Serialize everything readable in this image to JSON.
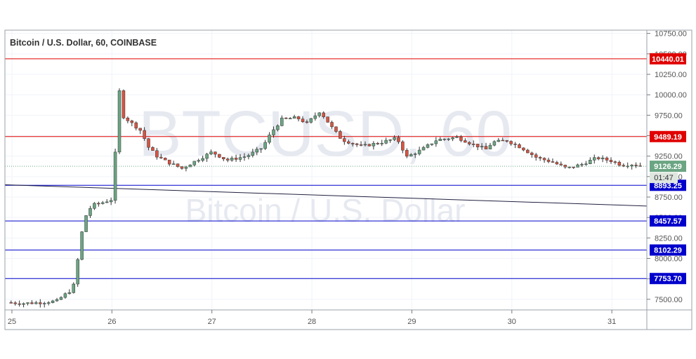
{
  "chart_data": {
    "type": "candlestick",
    "title": "Bitcoin / U.S. Dollar, 60, COINBASE",
    "watermark": {
      "symbol": "BTCUSD, 60",
      "description": "Bitcoin / U.S. Dollar"
    },
    "x_ticks": [
      "25",
      "26",
      "27",
      "28",
      "29",
      "30",
      "31"
    ],
    "y_ticks": [
      "7500.00",
      "7750.00",
      "8000.00",
      "8250.00",
      "8500.00",
      "8750.00",
      "9000.00",
      "9250.00",
      "9500.00",
      "9750.00",
      "10000.00",
      "10250.00",
      "10500.00",
      "10750.00"
    ],
    "ylim": [
      7370,
      10790
    ],
    "xlim": [
      24.93,
      31.35
    ],
    "current_price": {
      "label": "9126.29",
      "value": 9126.29,
      "countdown": "01:47",
      "color": "#6ba583"
    },
    "horizontal_levels": [
      {
        "label": "10440.01",
        "value": 10440.01,
        "color": "#e00000"
      },
      {
        "label": "9489.19",
        "value": 9489.19,
        "color": "#e00000"
      },
      {
        "label": "8893.25",
        "value": 8893.25,
        "color": "#0000cc"
      },
      {
        "label": "8457.57",
        "value": 8457.57,
        "color": "#0000cc"
      },
      {
        "label": "8102.29",
        "value": 8102.29,
        "color": "#0000cc"
      },
      {
        "label": "7753.70",
        "value": 7753.7,
        "color": "#0000cc"
      }
    ],
    "trendline": {
      "start": {
        "x": 24.93,
        "y": 8900
      },
      "end": {
        "x": 31.35,
        "y": 8640
      },
      "color": "#202040"
    },
    "colors": {
      "up": "#6ba583",
      "down": "#d75442",
      "grid": "#f0f3fa",
      "axis": "#777777"
    },
    "path_points": [
      [
        24.95,
        7460
      ],
      [
        25.1,
        7450
      ],
      [
        25.3,
        7460
      ],
      [
        25.45,
        7480
      ],
      [
        25.5,
        7530
      ],
      [
        25.58,
        7600
      ],
      [
        25.63,
        7700
      ],
      [
        25.68,
        8200
      ],
      [
        25.73,
        8500
      ],
      [
        25.8,
        8650
      ],
      [
        25.9,
        8680
      ],
      [
        26.0,
        8720
      ],
      [
        26.03,
        9200
      ],
      [
        26.05,
        9700
      ],
      [
        26.07,
        10100
      ],
      [
        26.1,
        9750
      ],
      [
        26.2,
        9650
      ],
      [
        26.3,
        9550
      ],
      [
        26.35,
        9380
      ],
      [
        26.45,
        9250
      ],
      [
        26.55,
        9180
      ],
      [
        26.7,
        9100
      ],
      [
        26.85,
        9200
      ],
      [
        27.0,
        9300
      ],
      [
        27.15,
        9200
      ],
      [
        27.35,
        9250
      ],
      [
        27.5,
        9350
      ],
      [
        27.6,
        9550
      ],
      [
        27.7,
        9700
      ],
      [
        27.85,
        9720
      ],
      [
        27.95,
        9650
      ],
      [
        28.08,
        9800
      ],
      [
        28.2,
        9600
      ],
      [
        28.3,
        9450
      ],
      [
        28.5,
        9370
      ],
      [
        28.7,
        9420
      ],
      [
        28.85,
        9470
      ],
      [
        28.95,
        9240
      ],
      [
        29.1,
        9330
      ],
      [
        29.25,
        9450
      ],
      [
        29.45,
        9480
      ],
      [
        29.6,
        9400
      ],
      [
        29.75,
        9330
      ],
      [
        29.8,
        9420
      ],
      [
        29.95,
        9440
      ],
      [
        30.1,
        9350
      ],
      [
        30.25,
        9230
      ],
      [
        30.4,
        9180
      ],
      [
        30.55,
        9100
      ],
      [
        30.7,
        9150
      ],
      [
        30.85,
        9230
      ],
      [
        31.0,
        9190
      ],
      [
        31.1,
        9140
      ],
      [
        31.2,
        9150
      ],
      [
        31.32,
        9126
      ]
    ]
  }
}
